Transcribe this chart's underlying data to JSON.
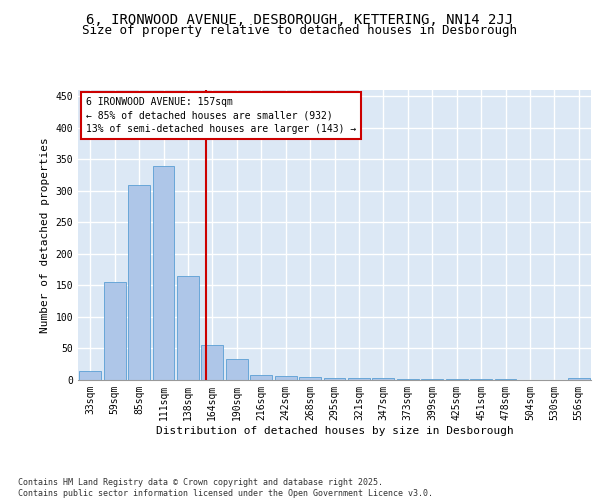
{
  "title1": "6, IRONWOOD AVENUE, DESBOROUGH, KETTERING, NN14 2JJ",
  "title2": "Size of property relative to detached houses in Desborough",
  "xlabel": "Distribution of detached houses by size in Desborough",
  "ylabel": "Number of detached properties",
  "categories": [
    "33sqm",
    "59sqm",
    "85sqm",
    "111sqm",
    "138sqm",
    "164sqm",
    "190sqm",
    "216sqm",
    "242sqm",
    "268sqm",
    "295sqm",
    "321sqm",
    "347sqm",
    "373sqm",
    "399sqm",
    "425sqm",
    "451sqm",
    "478sqm",
    "504sqm",
    "530sqm",
    "556sqm"
  ],
  "values": [
    15,
    155,
    310,
    340,
    165,
    55,
    33,
    8,
    6,
    5,
    3,
    3,
    3,
    2,
    2,
    1,
    1,
    1,
    0,
    0,
    3
  ],
  "bar_color": "#aec6e8",
  "bar_edgecolor": "#5a9fd4",
  "vline_color": "#cc0000",
  "annotation_line1": "6 IRONWOOD AVENUE: 157sqm",
  "annotation_line2": "← 85% of detached houses are smaller (932)",
  "annotation_line3": "13% of semi-detached houses are larger (143) →",
  "annotation_box_color": "#cc0000",
  "background_color": "#dce8f5",
  "grid_color": "#ffffff",
  "ylim": [
    0,
    460
  ],
  "yticks": [
    0,
    50,
    100,
    150,
    200,
    250,
    300,
    350,
    400,
    450
  ],
  "footer_text": "Contains HM Land Registry data © Crown copyright and database right 2025.\nContains public sector information licensed under the Open Government Licence v3.0.",
  "title_fontsize": 10,
  "subtitle_fontsize": 9,
  "axis_label_fontsize": 8,
  "tick_fontsize": 7,
  "annotation_fontsize": 7,
  "footer_fontsize": 6
}
